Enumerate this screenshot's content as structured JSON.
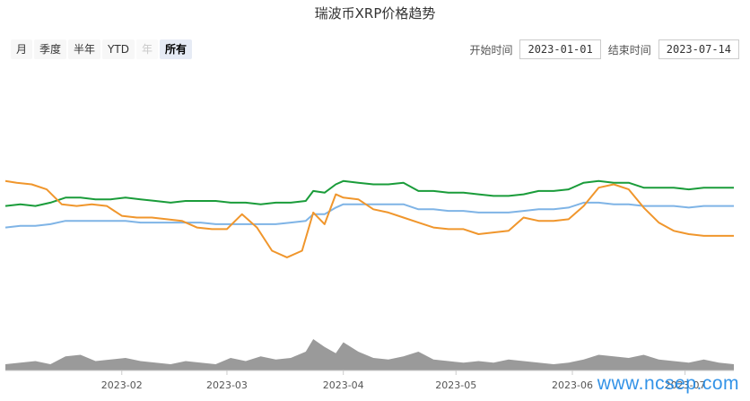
{
  "title": "瑞波币XRP价格趋势",
  "range_buttons": [
    {
      "label": "月",
      "state": "normal"
    },
    {
      "label": "季度",
      "state": "normal"
    },
    {
      "label": "半年",
      "state": "normal"
    },
    {
      "label": "YTD",
      "state": "normal"
    },
    {
      "label": "年",
      "state": "disabled"
    },
    {
      "label": "所有",
      "state": "active"
    }
  ],
  "date_range": {
    "start_label": "开始时间",
    "start_value": "2023-01-01",
    "end_label": "结束时间",
    "end_value": "2023-07-14"
  },
  "watermark": "www.ncsep.com",
  "colors": {
    "green": "#1a9c3a",
    "blue": "#7fb4e6",
    "orange": "#f0962c",
    "volume": "#9a9a9a",
    "axis": "#cccccc"
  },
  "chart_data": {
    "type": "line",
    "title": "瑞波币XRP价格趋势",
    "x_range": [
      "2023-01-01",
      "2023-07-14"
    ],
    "x_tick_labels": [
      "2023-02",
      "2023-03",
      "2023-04",
      "2023-05",
      "2023-06",
      "2023-07"
    ],
    "x_tick_dates": [
      "2023-02-01",
      "2023-03-01",
      "2023-04-01",
      "2023-05-01",
      "2023-06-01",
      "2023-07-01"
    ],
    "y_relative_range": [
      0,
      100
    ],
    "series": [
      {
        "color": "green",
        "points": [
          [
            "2023-01-01",
            57
          ],
          [
            "2023-01-05",
            58
          ],
          [
            "2023-01-09",
            57
          ],
          [
            "2023-01-13",
            59
          ],
          [
            "2023-01-17",
            62
          ],
          [
            "2023-01-21",
            62
          ],
          [
            "2023-01-25",
            61
          ],
          [
            "2023-01-29",
            61
          ],
          [
            "2023-02-02",
            62
          ],
          [
            "2023-02-06",
            61
          ],
          [
            "2023-02-10",
            60
          ],
          [
            "2023-02-14",
            59
          ],
          [
            "2023-02-18",
            60
          ],
          [
            "2023-02-22",
            60
          ],
          [
            "2023-02-26",
            60
          ],
          [
            "2023-03-02",
            59
          ],
          [
            "2023-03-06",
            59
          ],
          [
            "2023-03-10",
            58
          ],
          [
            "2023-03-14",
            59
          ],
          [
            "2023-03-18",
            59
          ],
          [
            "2023-03-22",
            60
          ],
          [
            "2023-03-24",
            66
          ],
          [
            "2023-03-27",
            65
          ],
          [
            "2023-03-30",
            70
          ],
          [
            "2023-04-01",
            72
          ],
          [
            "2023-04-05",
            71
          ],
          [
            "2023-04-09",
            70
          ],
          [
            "2023-04-13",
            70
          ],
          [
            "2023-04-17",
            71
          ],
          [
            "2023-04-21",
            66
          ],
          [
            "2023-04-25",
            66
          ],
          [
            "2023-04-29",
            65
          ],
          [
            "2023-05-03",
            65
          ],
          [
            "2023-05-07",
            64
          ],
          [
            "2023-05-11",
            63
          ],
          [
            "2023-05-15",
            63
          ],
          [
            "2023-05-19",
            64
          ],
          [
            "2023-05-23",
            66
          ],
          [
            "2023-05-27",
            66
          ],
          [
            "2023-05-31",
            67
          ],
          [
            "2023-06-04",
            71
          ],
          [
            "2023-06-08",
            72
          ],
          [
            "2023-06-12",
            71
          ],
          [
            "2023-06-16",
            71
          ],
          [
            "2023-06-20",
            68
          ],
          [
            "2023-06-24",
            68
          ],
          [
            "2023-06-28",
            68
          ],
          [
            "2023-07-02",
            67
          ],
          [
            "2023-07-06",
            68
          ],
          [
            "2023-07-10",
            68
          ],
          [
            "2023-07-14",
            68
          ]
        ]
      },
      {
        "color": "blue",
        "points": [
          [
            "2023-01-01",
            44
          ],
          [
            "2023-01-05",
            45
          ],
          [
            "2023-01-09",
            45
          ],
          [
            "2023-01-13",
            46
          ],
          [
            "2023-01-17",
            48
          ],
          [
            "2023-01-21",
            48
          ],
          [
            "2023-01-25",
            48
          ],
          [
            "2023-01-29",
            48
          ],
          [
            "2023-02-02",
            48
          ],
          [
            "2023-02-06",
            47
          ],
          [
            "2023-02-10",
            47
          ],
          [
            "2023-02-14",
            47
          ],
          [
            "2023-02-18",
            47
          ],
          [
            "2023-02-22",
            47
          ],
          [
            "2023-02-26",
            46
          ],
          [
            "2023-03-02",
            46
          ],
          [
            "2023-03-06",
            46
          ],
          [
            "2023-03-10",
            46
          ],
          [
            "2023-03-14",
            46
          ],
          [
            "2023-03-18",
            47
          ],
          [
            "2023-03-22",
            48
          ],
          [
            "2023-03-24",
            52
          ],
          [
            "2023-03-27",
            52
          ],
          [
            "2023-03-30",
            56
          ],
          [
            "2023-04-01",
            58
          ],
          [
            "2023-04-05",
            58
          ],
          [
            "2023-04-09",
            58
          ],
          [
            "2023-04-13",
            58
          ],
          [
            "2023-04-17",
            58
          ],
          [
            "2023-04-21",
            55
          ],
          [
            "2023-04-25",
            55
          ],
          [
            "2023-04-29",
            54
          ],
          [
            "2023-05-03",
            54
          ],
          [
            "2023-05-07",
            53
          ],
          [
            "2023-05-11",
            53
          ],
          [
            "2023-05-15",
            53
          ],
          [
            "2023-05-19",
            54
          ],
          [
            "2023-05-23",
            55
          ],
          [
            "2023-05-27",
            55
          ],
          [
            "2023-05-31",
            56
          ],
          [
            "2023-06-04",
            59
          ],
          [
            "2023-06-08",
            59
          ],
          [
            "2023-06-12",
            58
          ],
          [
            "2023-06-16",
            58
          ],
          [
            "2023-06-20",
            57
          ],
          [
            "2023-06-24",
            57
          ],
          [
            "2023-06-28",
            57
          ],
          [
            "2023-07-02",
            56
          ],
          [
            "2023-07-06",
            57
          ],
          [
            "2023-07-10",
            57
          ],
          [
            "2023-07-14",
            57
          ]
        ]
      },
      {
        "color": "orange",
        "points": [
          [
            "2023-01-01",
            72
          ],
          [
            "2023-01-04",
            71
          ],
          [
            "2023-01-08",
            70
          ],
          [
            "2023-01-12",
            67
          ],
          [
            "2023-01-16",
            58
          ],
          [
            "2023-01-20",
            57
          ],
          [
            "2023-01-24",
            58
          ],
          [
            "2023-01-28",
            57
          ],
          [
            "2023-02-01",
            51
          ],
          [
            "2023-02-05",
            50
          ],
          [
            "2023-02-09",
            50
          ],
          [
            "2023-02-13",
            49
          ],
          [
            "2023-02-17",
            48
          ],
          [
            "2023-02-21",
            44
          ],
          [
            "2023-02-25",
            43
          ],
          [
            "2023-03-01",
            43
          ],
          [
            "2023-03-05",
            52
          ],
          [
            "2023-03-09",
            44
          ],
          [
            "2023-03-13",
            30
          ],
          [
            "2023-03-17",
            26
          ],
          [
            "2023-03-21",
            30
          ],
          [
            "2023-03-24",
            53
          ],
          [
            "2023-03-27",
            46
          ],
          [
            "2023-03-30",
            64
          ],
          [
            "2023-04-01",
            62
          ],
          [
            "2023-04-05",
            61
          ],
          [
            "2023-04-09",
            55
          ],
          [
            "2023-04-13",
            53
          ],
          [
            "2023-04-17",
            50
          ],
          [
            "2023-04-21",
            47
          ],
          [
            "2023-04-25",
            44
          ],
          [
            "2023-04-29",
            43
          ],
          [
            "2023-05-03",
            43
          ],
          [
            "2023-05-07",
            40
          ],
          [
            "2023-05-11",
            41
          ],
          [
            "2023-05-15",
            42
          ],
          [
            "2023-05-19",
            50
          ],
          [
            "2023-05-23",
            48
          ],
          [
            "2023-05-27",
            48
          ],
          [
            "2023-05-31",
            49
          ],
          [
            "2023-06-04",
            57
          ],
          [
            "2023-06-08",
            68
          ],
          [
            "2023-06-12",
            70
          ],
          [
            "2023-06-16",
            67
          ],
          [
            "2023-06-20",
            56
          ],
          [
            "2023-06-24",
            47
          ],
          [
            "2023-06-28",
            42
          ],
          [
            "2023-07-02",
            40
          ],
          [
            "2023-07-06",
            39
          ],
          [
            "2023-07-10",
            39
          ],
          [
            "2023-07-14",
            39
          ]
        ]
      }
    ],
    "volume": [
      [
        "2023-01-01",
        20
      ],
      [
        "2023-01-05",
        25
      ],
      [
        "2023-01-09",
        30
      ],
      [
        "2023-01-13",
        20
      ],
      [
        "2023-01-17",
        45
      ],
      [
        "2023-01-21",
        50
      ],
      [
        "2023-01-25",
        30
      ],
      [
        "2023-01-29",
        35
      ],
      [
        "2023-02-02",
        40
      ],
      [
        "2023-02-06",
        30
      ],
      [
        "2023-02-10",
        25
      ],
      [
        "2023-02-14",
        20
      ],
      [
        "2023-02-18",
        30
      ],
      [
        "2023-02-22",
        25
      ],
      [
        "2023-02-26",
        20
      ],
      [
        "2023-03-02",
        40
      ],
      [
        "2023-03-06",
        30
      ],
      [
        "2023-03-10",
        45
      ],
      [
        "2023-03-14",
        35
      ],
      [
        "2023-03-18",
        40
      ],
      [
        "2023-03-22",
        60
      ],
      [
        "2023-03-24",
        100
      ],
      [
        "2023-03-27",
        75
      ],
      [
        "2023-03-30",
        55
      ],
      [
        "2023-04-01",
        90
      ],
      [
        "2023-04-05",
        60
      ],
      [
        "2023-04-09",
        40
      ],
      [
        "2023-04-13",
        35
      ],
      [
        "2023-04-17",
        45
      ],
      [
        "2023-04-21",
        60
      ],
      [
        "2023-04-25",
        35
      ],
      [
        "2023-04-29",
        30
      ],
      [
        "2023-05-03",
        25
      ],
      [
        "2023-05-07",
        30
      ],
      [
        "2023-05-11",
        25
      ],
      [
        "2023-05-15",
        35
      ],
      [
        "2023-05-19",
        30
      ],
      [
        "2023-05-23",
        25
      ],
      [
        "2023-05-27",
        20
      ],
      [
        "2023-05-31",
        25
      ],
      [
        "2023-06-04",
        35
      ],
      [
        "2023-06-08",
        50
      ],
      [
        "2023-06-12",
        45
      ],
      [
        "2023-06-16",
        40
      ],
      [
        "2023-06-20",
        50
      ],
      [
        "2023-06-24",
        35
      ],
      [
        "2023-06-28",
        30
      ],
      [
        "2023-07-02",
        25
      ],
      [
        "2023-07-06",
        35
      ],
      [
        "2023-07-10",
        25
      ],
      [
        "2023-07-14",
        20
      ]
    ]
  }
}
